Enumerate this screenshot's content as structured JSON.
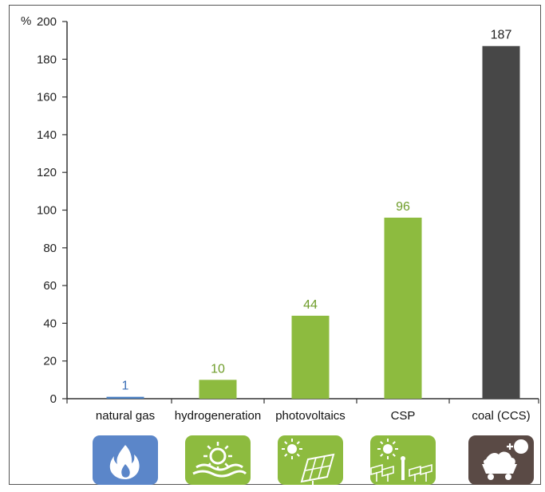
{
  "chart_data": {
    "type": "bar",
    "unit_label": "%",
    "categories": [
      "natural gas",
      "hydrogeneration",
      "photovoltaics",
      "CSP",
      "coal (CCS)"
    ],
    "values": [
      1,
      10,
      44,
      96,
      187
    ],
    "value_labels": [
      "1",
      "10",
      "44",
      "96",
      "187"
    ],
    "ylim": [
      0,
      200
    ],
    "yticks": [
      0,
      20,
      40,
      60,
      80,
      100,
      120,
      140,
      160,
      180,
      200
    ],
    "grid": false,
    "bar_colors": [
      "#4a7fc1",
      "#8dbb3f",
      "#8dbb3f",
      "#8dbb3f",
      "#474747"
    ],
    "label_colors": [
      "#3b6fb6",
      "#6f9d2a",
      "#6f9d2a",
      "#6f9d2a",
      "#222222"
    ],
    "icons": [
      {
        "name": "flame-icon",
        "color": "#5b86c9"
      },
      {
        "name": "sun-waves-icon",
        "color": "#8dbb3f"
      },
      {
        "name": "sun-solar-panel-icon",
        "color": "#8dbb3f"
      },
      {
        "name": "sun-mirrors-icon",
        "color": "#8dbb3f"
      },
      {
        "name": "coal-cart-icon",
        "color": "#5a4a45"
      }
    ]
  }
}
